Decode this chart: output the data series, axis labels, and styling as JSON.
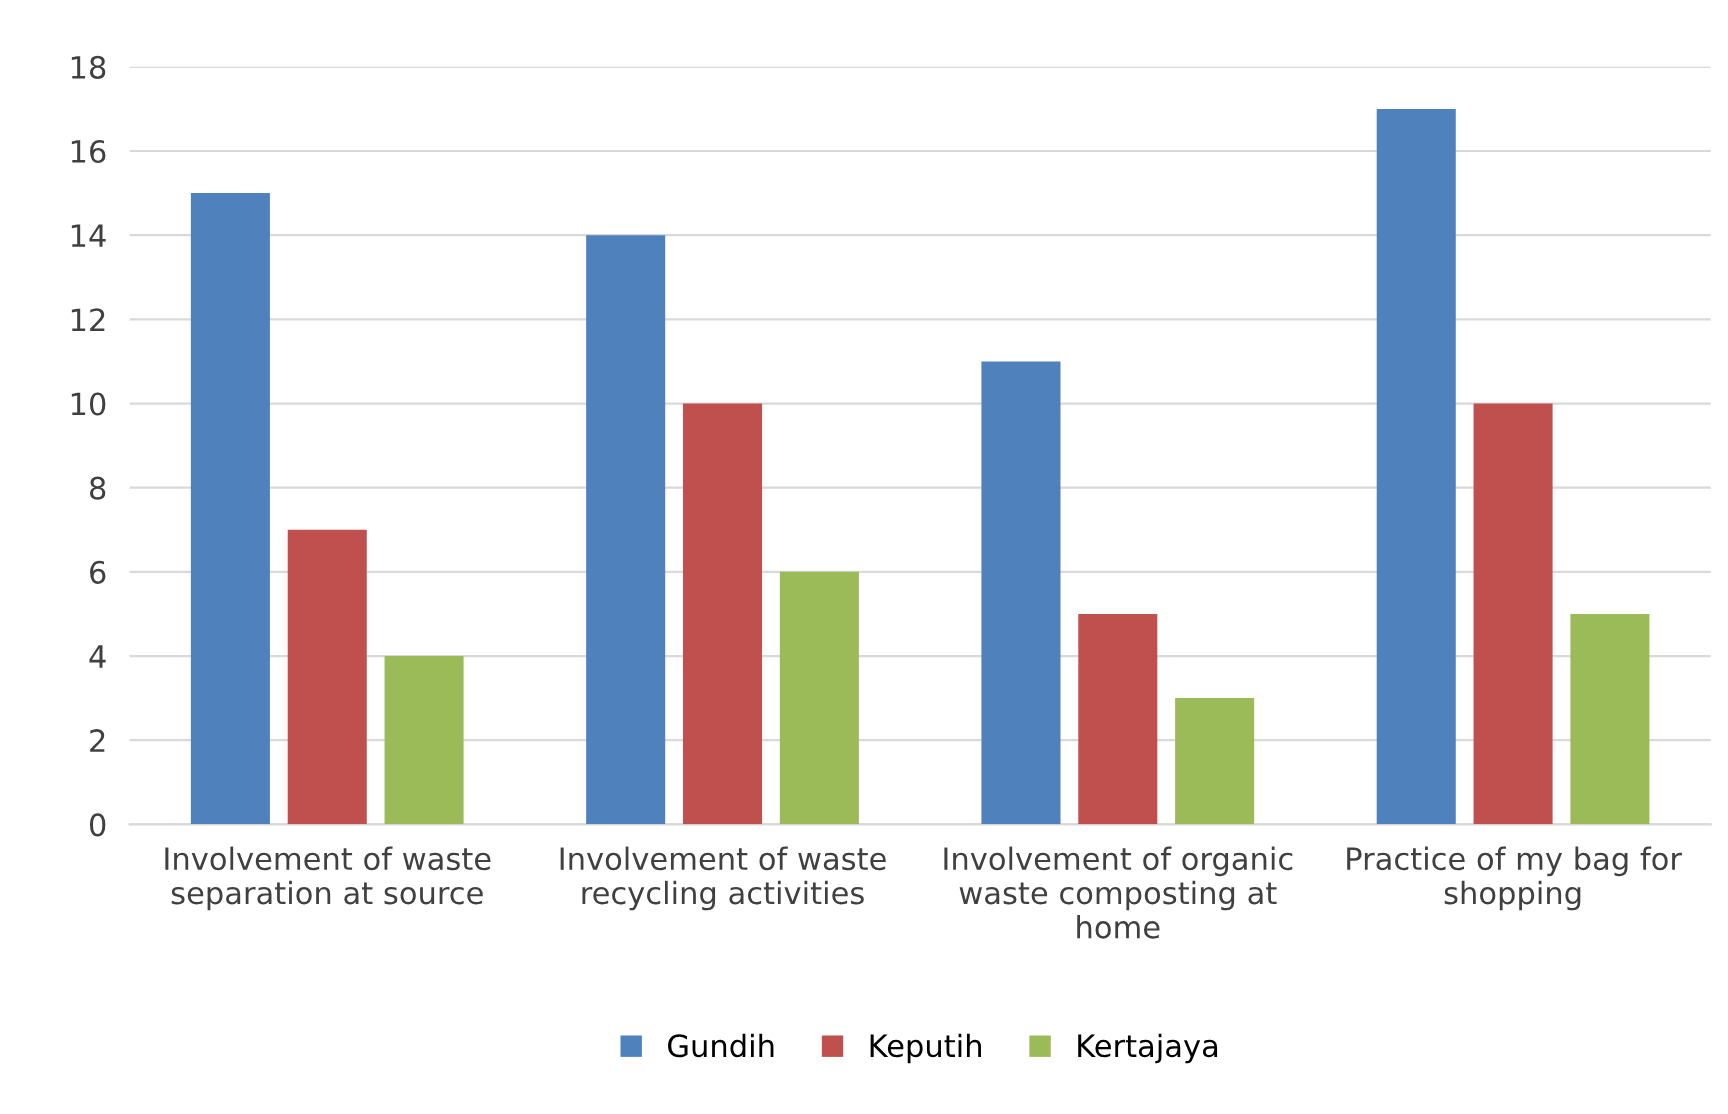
{
  "chart_data": {
    "type": "bar",
    "categories": [
      "Involvement of waste separation at source",
      "Involvement of waste recycling activities",
      "Involvement of organic waste composting at home",
      "Practice of my bag for shopping"
    ],
    "series": [
      {
        "name": "Gundih",
        "color": "#4f81bd",
        "values": [
          15,
          14,
          11,
          17
        ]
      },
      {
        "name": "Keputih",
        "color": "#c0504d",
        "values": [
          7,
          10,
          5,
          10
        ]
      },
      {
        "name": "Kertajaya",
        "color": "#9bbb59",
        "values": [
          4,
          6,
          3,
          5
        ]
      }
    ],
    "ylim": [
      0,
      18
    ],
    "yticks": [
      0,
      2,
      4,
      6,
      8,
      10,
      12,
      14,
      16,
      18
    ],
    "grid": "y",
    "legend": "bottom"
  }
}
